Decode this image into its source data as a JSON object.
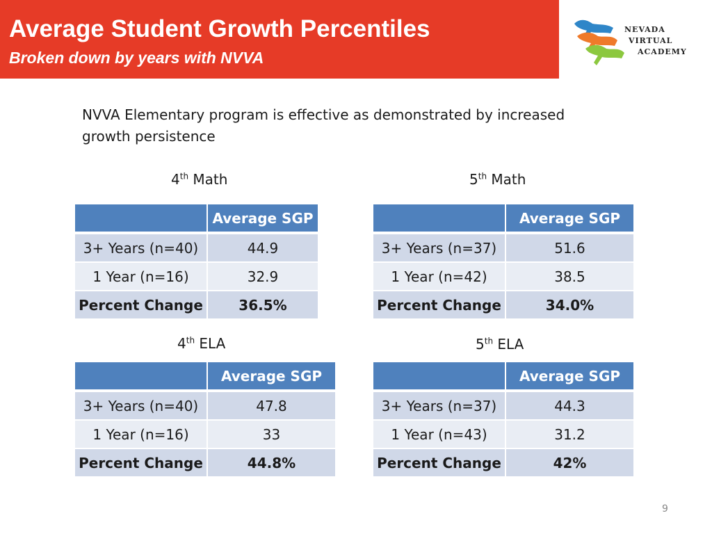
{
  "header": {
    "title": "Average Student Growth Percentiles",
    "subtitle": "Broken down by years with NVVA"
  },
  "logo": {
    "line1": "NEVADA",
    "line2": "VIRTUAL",
    "line3": "ACADEMY"
  },
  "intro": "NVVA Elementary program is effective as demonstrated by increased growth persistence",
  "tables": [
    {
      "grade": "4",
      "ord": "th",
      "subject": "Math",
      "col_header": "Average SGP",
      "rows": [
        {
          "label": "3+ Years (n=40)",
          "value": "44.9"
        },
        {
          "label": "1 Year (n=16)",
          "value": "32.9"
        },
        {
          "label": "Percent Change",
          "value": "36.5%"
        }
      ]
    },
    {
      "grade": "5",
      "ord": "th",
      "subject": "Math",
      "col_header": "Average SGP",
      "rows": [
        {
          "label": "3+ Years (n=37)",
          "value": "51.6"
        },
        {
          "label": "1 Year (n=42)",
          "value": "38.5"
        },
        {
          "label": "Percent Change",
          "value": "34.0%"
        }
      ]
    },
    {
      "grade": "4",
      "ord": "th",
      "subject": "ELA",
      "col_header": "Average SGP",
      "rows": [
        {
          "label": "3+ Years (n=40)",
          "value": "47.8"
        },
        {
          "label": "1 Year (n=16)",
          "value": "33"
        },
        {
          "label": "Percent Change",
          "value": "44.8%"
        }
      ]
    },
    {
      "grade": "5",
      "ord": "th",
      "subject": "ELA",
      "col_header": "Average SGP",
      "rows": [
        {
          "label": "3+ Years (n=37)",
          "value": "44.3"
        },
        {
          "label": "1 Year (n=43)",
          "value": "31.2"
        },
        {
          "label": "Percent Change",
          "value": "42%"
        }
      ]
    }
  ],
  "page_number": "9",
  "colors": {
    "title_bar": "#e63b27",
    "table_header": "#4f81bd",
    "row_dark": "#d0d8e8",
    "row_light": "#e9edf4"
  }
}
